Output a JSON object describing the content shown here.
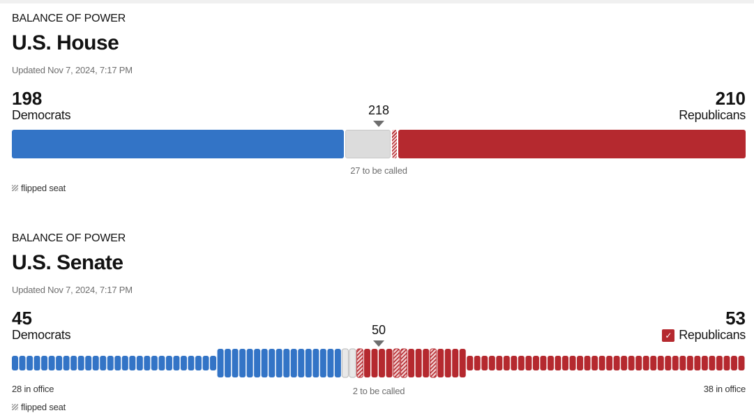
{
  "house": {
    "kicker": "BALANCE OF POWER",
    "title": "U.S. House",
    "updated": "Updated Nov 7, 2024, 7:17 PM",
    "dem_count": "198",
    "dem_label": "Democrats",
    "rep_count": "210",
    "rep_label": "Republicans",
    "threshold": "218",
    "to_be_called": "27 to be called",
    "legend": "flipped seat"
  },
  "senate": {
    "kicker": "BALANCE OF POWER",
    "title": "U.S. Senate",
    "updated": "Updated Nov 7, 2024, 7:17 PM",
    "dem_count": "45",
    "dem_label": "Democrats",
    "rep_count": "53",
    "rep_label": "Republicans",
    "threshold": "50",
    "to_be_called": "2 to be called",
    "dem_in_office": "28 in office",
    "rep_in_office": "38 in office",
    "legend": "flipped seat"
  },
  "colors": {
    "democrat": "#3374c6",
    "republican": "#b5292f",
    "undecided": "#dcdcdc",
    "text_muted": "#6e6e6e"
  },
  "chart_data": [
    {
      "type": "bar",
      "title": "U.S. House",
      "total_seats": 435,
      "majority": 218,
      "series": [
        {
          "name": "Democrats",
          "values": [
            198
          ]
        },
        {
          "name": "Republicans",
          "values": [
            210
          ]
        }
      ],
      "uncalled": 27,
      "flipped_republican": 3
    },
    {
      "type": "bar",
      "title": "U.S. Senate",
      "total_seats": 100,
      "majority": 50,
      "series": [
        {
          "name": "Democrats",
          "values": [
            45
          ]
        },
        {
          "name": "Republicans",
          "values": [
            53
          ]
        }
      ],
      "dem_in_office": 28,
      "rep_in_office": 38,
      "uncalled": 2,
      "flipped_republican": 4,
      "rep_won_control": true
    }
  ]
}
